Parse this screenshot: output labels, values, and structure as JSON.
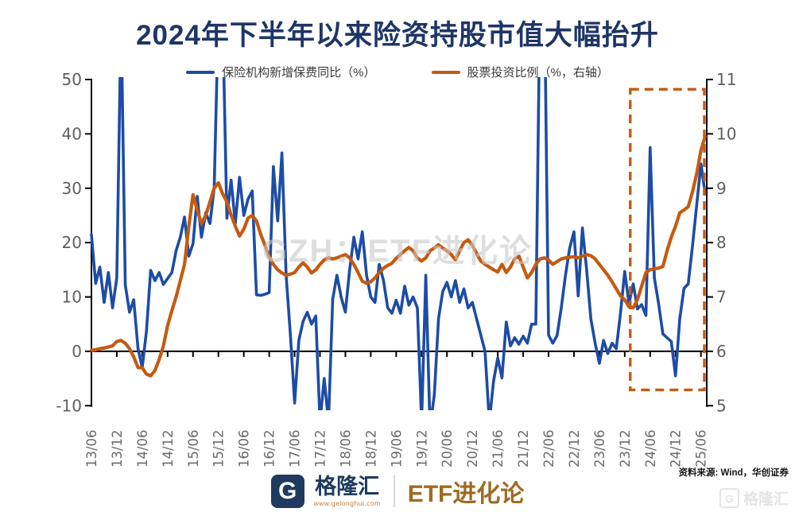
{
  "title": "2024年下半年以来险资持股市值大幅抬升",
  "legend": [
    {
      "label": "保险机构新增保费同比（%）",
      "color": "#1d4ca5"
    },
    {
      "label": "股票投资比例（%，右轴）",
      "color": "#c55a11"
    }
  ],
  "watermark_center": "GZH：ETF进化论",
  "source_note": "资料来源: Wind，华创证券",
  "footer": {
    "brand_mark": "G",
    "brand": "格隆汇",
    "brand_url": "www.gelonghui.com",
    "series_name": "ETF进化论",
    "corner_watermark": "格隆汇"
  },
  "colors": {
    "title_navy": "#1e3566",
    "blue_line": "#1d4ca5",
    "orange_line": "#c55a11",
    "axis_line": "#000000",
    "axis_text": "#5f5f5f",
    "brand_navy": "#1e3a5f",
    "brand_bronze": "#9d6b21",
    "watermark_gray": "#c9c9c9"
  },
  "chart_data": {
    "type": "line",
    "title": "2024年下半年以来险资持股市值大幅抬升",
    "x_tick_labels": [
      "13/06",
      "13/12",
      "14/06",
      "14/12",
      "15/06",
      "15/12",
      "16/06",
      "16/12",
      "17/06",
      "17/12",
      "18/06",
      "18/12",
      "19/06",
      "19/12",
      "20/06",
      "20/12",
      "21/06",
      "21/12",
      "22/06",
      "22/12",
      "23/06",
      "23/12",
      "24/06",
      "24/12",
      "25/06"
    ],
    "months_per_tick": 6,
    "left_axis": {
      "min": -10,
      "max": 50,
      "ticks": [
        50,
        40,
        30,
        20,
        10,
        0,
        -10
      ]
    },
    "right_axis": {
      "min": 5,
      "max": 11,
      "ticks": [
        11,
        10,
        9,
        8,
        7,
        6,
        5
      ]
    },
    "baseline_left_value": 0,
    "grid": false,
    "legend_position": "top",
    "series": [
      {
        "name": "保险机构新增保费同比（%）",
        "axis": "left",
        "color": "#1d4ca5",
        "width": 3.6,
        "values": [
          21.5,
          12.5,
          15.5,
          9,
          14.5,
          8,
          13.5,
          62,
          12.2,
          7.2,
          9.5,
          0.5,
          -3,
          3.7,
          14.9,
          13,
          14.5,
          12.3,
          13.4,
          14.5,
          18.5,
          21,
          24.7,
          17.5,
          19.8,
          28.5,
          21,
          25.5,
          23.5,
          30,
          62,
          62,
          24.5,
          31.5,
          23.5,
          32,
          25,
          28,
          29.5,
          10.4,
          10.3,
          10.5,
          10.8,
          34,
          24,
          36.5,
          14,
          3.2,
          -9.5,
          2,
          5.5,
          7.2,
          5,
          6.5,
          -13,
          -5,
          -13,
          9.6,
          14,
          10,
          7.2,
          15,
          21,
          17,
          22,
          14,
          10,
          9,
          16,
          13,
          8,
          7,
          9.4,
          7,
          12,
          8.5,
          10,
          8,
          -13,
          14,
          -14,
          -8,
          6,
          11,
          12.7,
          10,
          13,
          9,
          11.5,
          8,
          9,
          6,
          3,
          0,
          -13,
          -5.5,
          -1.2,
          -4.9,
          5.4,
          1,
          2.5,
          1.3,
          2.8,
          1.5,
          5,
          5,
          68,
          68,
          3,
          1.5,
          2.9,
          8,
          14,
          19,
          22,
          10.2,
          22.7,
          15,
          6,
          1.5,
          -2.2,
          2,
          -0.4,
          1.5,
          0.5,
          7,
          14.7,
          8.8,
          12.4,
          7.8,
          8.6,
          6.6,
          37.5,
          13.5,
          8.8,
          3.2,
          2.5,
          1.8,
          -4.5,
          6.1,
          11.6,
          12.4,
          19.3,
          27,
          34.5,
          29
        ]
      },
      {
        "name": "股票投资比例（%，右轴）",
        "axis": "right",
        "color": "#c55a11",
        "width": 4.2,
        "values": [
          6.02,
          6.03,
          6.05,
          6.06,
          6.08,
          6.1,
          6.18,
          6.2,
          6.15,
          6.05,
          5.9,
          5.7,
          5.7,
          5.58,
          5.55,
          5.65,
          5.85,
          6.1,
          6.47,
          6.75,
          7,
          7.3,
          7.6,
          8.3,
          8.88,
          8.6,
          8.35,
          8.5,
          8.75,
          9,
          9.1,
          8.9,
          8.75,
          8.51,
          8.3,
          8.12,
          8.25,
          8.45,
          8.5,
          8.4,
          8.15,
          7.95,
          7.74,
          7.6,
          7.5,
          7.44,
          7.4,
          7.42,
          7.45,
          7.55,
          7.63,
          7.55,
          7.44,
          7.5,
          7.6,
          7.68,
          7.72,
          7.7,
          7.72,
          7.75,
          7.78,
          7.72,
          7.6,
          7.45,
          7.29,
          7.25,
          7.28,
          7.35,
          7.45,
          7.53,
          7.58,
          7.62,
          7.71,
          7.78,
          7.85,
          7.91,
          7.85,
          7.72,
          7.66,
          7.72,
          7.85,
          7.9,
          7.96,
          7.9,
          7.85,
          7.78,
          7.68,
          7.85,
          8,
          8.05,
          7.95,
          7.8,
          7.66,
          7.6,
          7.55,
          7.5,
          7.46,
          7.6,
          7.45,
          7.55,
          7.7,
          7.75,
          7.55,
          7.35,
          7.45,
          7.6,
          7.7,
          7.72,
          7.68,
          7.6,
          7.65,
          7.7,
          7.72,
          7.73,
          7.74,
          7.72,
          7.75,
          7.78,
          7.76,
          7.7,
          7.6,
          7.5,
          7.4,
          7.28,
          7.15,
          7.02,
          6.95,
          6.82,
          6.8,
          6.95,
          7.2,
          7.45,
          7.5,
          7.52,
          7.53,
          7.56,
          7.85,
          8.1,
          8.3,
          8.55,
          8.6,
          8.66,
          8.93,
          9.27,
          9.7,
          9.95
        ]
      }
    ],
    "highlight_box": {
      "style": "dashed",
      "color": "#c55a11",
      "start_month_index": 127.3,
      "end_month_index": 144.8,
      "top_value_left": 48.2,
      "bottom_value_left": -7.1
    }
  }
}
